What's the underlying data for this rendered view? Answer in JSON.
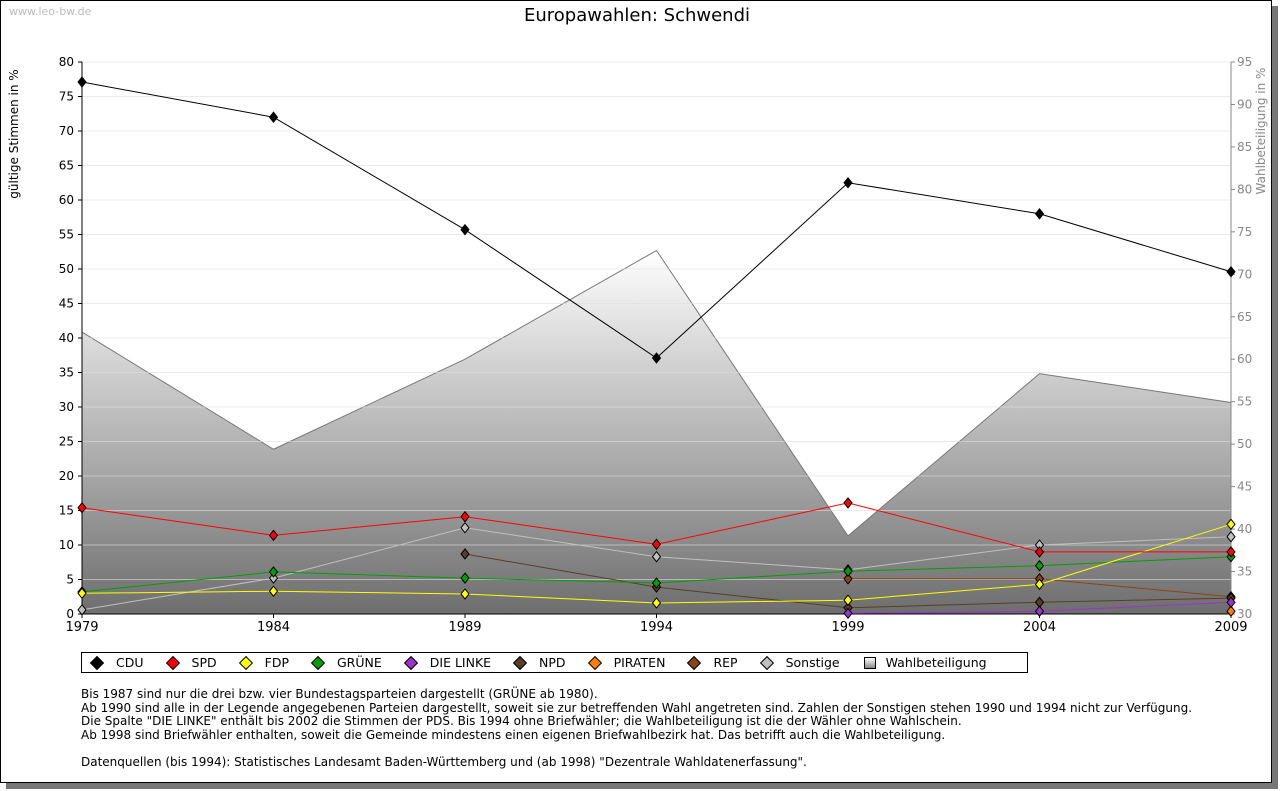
{
  "watermark": "www.leo-bw.de",
  "chart_data": {
    "type": "line",
    "title": "Europawahlen: Schwendi",
    "ylabel": "gültige Stimmen in %",
    "y2label": "Wahlbeteiligung in %",
    "x": [
      1979,
      1984,
      1989,
      1994,
      1999,
      2004,
      2009
    ],
    "ylim": [
      0,
      80
    ],
    "yticks": [
      0,
      5,
      10,
      15,
      20,
      25,
      30,
      35,
      40,
      45,
      50,
      55,
      60,
      65,
      70,
      75,
      80
    ],
    "y2lim": [
      30,
      95
    ],
    "y2ticks": [
      30,
      35,
      40,
      45,
      50,
      55,
      60,
      65,
      70,
      75,
      80,
      85,
      90,
      95
    ],
    "series": [
      {
        "name": "CDU",
        "color": "#000000",
        "values": [
          77.1,
          72.0,
          55.7,
          37.1,
          62.5,
          58.0,
          49.6
        ]
      },
      {
        "name": "SPD",
        "color": "#ff0000",
        "values": [
          15.4,
          11.4,
          14.1,
          10.1,
          16.1,
          9.0,
          9.0
        ]
      },
      {
        "name": "FDP",
        "color": "#ffff00",
        "values": [
          3.0,
          3.3,
          2.9,
          1.6,
          2.0,
          4.3,
          13.0
        ]
      },
      {
        "name": "GRÜNE",
        "color": "#00a000",
        "values": [
          3.2,
          6.1,
          5.2,
          4.5,
          6.2,
          7.0,
          8.3
        ]
      },
      {
        "name": "DIE LINKE",
        "color": "#9933cc",
        "values": [
          null,
          null,
          null,
          null,
          0.1,
          0.4,
          1.7
        ]
      },
      {
        "name": "NPD",
        "color": "#5a3d28",
        "values": [
          null,
          null,
          8.7,
          3.9,
          0.9,
          1.7,
          2.3
        ]
      },
      {
        "name": "PIRATEN",
        "color": "#ff8000",
        "values": [
          null,
          null,
          null,
          null,
          null,
          null,
          0.4
        ]
      },
      {
        "name": "REP",
        "color": "#8b4513",
        "values": [
          null,
          null,
          null,
          null,
          5.1,
          5.1,
          2.5
        ]
      },
      {
        "name": "Sonstige",
        "color": "#c0c0c0",
        "values": [
          0.6,
          5.2,
          12.5,
          8.3,
          6.4,
          10.0,
          11.2
        ]
      }
    ],
    "area": {
      "name": "Wahlbeteiligung",
      "axis": "right",
      "values": [
        63.2,
        49.4,
        60.0,
        72.8,
        39.2,
        58.3,
        54.9
      ]
    },
    "legend": "bottom",
    "grid": true
  },
  "notes": [
    "Bis 1987 sind nur die drei bzw. vier Bundestagsparteien dargestellt (GRÜNE ab 1980).",
    "Ab 1990 sind alle in der Legende angegebenen Parteien dargestellt, soweit sie zur betreffenden Wahl angetreten sind. Zahlen der Sonstigen stehen 1990 und 1994 nicht zur Verfügung.",
    "Die Spalte \"DIE LINKE\" enthält bis 2002 die Stimmen der PDS. Bis 1994 ohne Briefwähler; die Wahlbeteiligung ist die der Wähler ohne Wahlschein.",
    "Ab 1998 sind Briefwähler enthalten, soweit die Gemeinde mindestens einen eigenen Briefwahlbezirk hat. Das betrifft auch die Wahlbeteiligung.",
    "",
    "Datenquellen (bis 1994): Statistisches Landesamt Baden-Württemberg und (ab 1998) \"Dezentrale Wahldatenerfassung\"."
  ]
}
